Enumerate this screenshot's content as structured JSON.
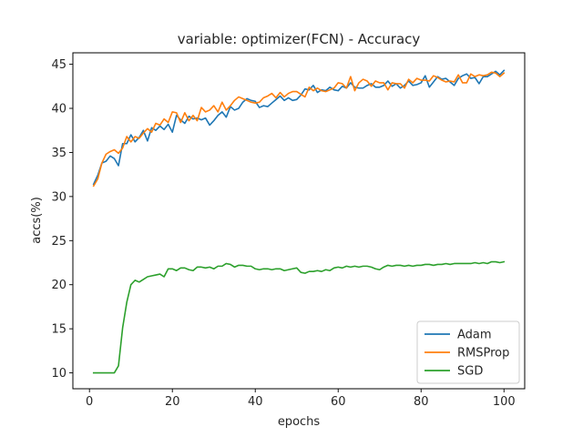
{
  "chart_data": {
    "type": "line",
    "title": "variable: optimizer(FCN) - Accuracy",
    "xlabel": "epochs",
    "ylabel": "accs(%)",
    "xlim": [
      -4,
      105
    ],
    "ylim": [
      8.2,
      46.3
    ],
    "xticks": [
      0,
      20,
      40,
      60,
      80,
      100
    ],
    "yticks": [
      10,
      15,
      20,
      25,
      30,
      35,
      40,
      45
    ],
    "grid": false,
    "legend_position": "bottom-right",
    "series": [
      {
        "name": "Adam",
        "color": "#1f77b4",
        "values": [
          31.4,
          32.4,
          33.8,
          34.0,
          34.6,
          34.3,
          33.5,
          36.0,
          36.0,
          37.0,
          36.2,
          36.7,
          37.5,
          36.3,
          37.8,
          37.5,
          38.0,
          37.6,
          38.2,
          37.3,
          39.2,
          38.7,
          38.3,
          39.1,
          38.8,
          38.9,
          38.7,
          38.9,
          38.1,
          38.6,
          39.2,
          39.6,
          39.0,
          40.2,
          39.8,
          40.0,
          40.7,
          41.1,
          40.9,
          40.8,
          40.1,
          40.3,
          40.2,
          40.6,
          41.0,
          41.4,
          40.9,
          41.2,
          40.9,
          41.0,
          41.5,
          42.2,
          42.1,
          42.6,
          41.8,
          42.1,
          42.0,
          42.4,
          42.1,
          42.0,
          42.5,
          42.3,
          42.9,
          42.4,
          42.3,
          42.3,
          42.6,
          42.8,
          42.4,
          42.4,
          42.6,
          43.1,
          42.5,
          42.8,
          42.3,
          42.6,
          43.1,
          42.6,
          42.7,
          42.9,
          43.7,
          42.4,
          43.0,
          43.6,
          43.3,
          43.4,
          43.0,
          42.6,
          43.4,
          43.7,
          43.9,
          43.4,
          43.5,
          42.8,
          43.6,
          43.6,
          43.9,
          44.2,
          43.8,
          44.3
        ]
      },
      {
        "name": "RMSProp",
        "color": "#ff7f0e",
        "values": [
          31.2,
          32.0,
          33.8,
          34.8,
          35.1,
          35.3,
          34.9,
          35.5,
          36.8,
          36.2,
          36.8,
          36.6,
          37.2,
          37.7,
          37.3,
          38.3,
          38.1,
          38.8,
          38.4,
          39.6,
          39.5,
          38.4,
          39.5,
          38.6,
          39.2,
          38.6,
          40.1,
          39.6,
          39.8,
          40.3,
          39.6,
          40.7,
          39.8,
          40.3,
          40.9,
          41.3,
          41.1,
          40.9,
          40.7,
          40.6,
          40.7,
          41.2,
          41.4,
          41.7,
          41.2,
          41.8,
          41.3,
          41.7,
          41.9,
          41.9,
          41.6,
          41.3,
          42.4,
          42.0,
          42.3,
          42.0,
          41.9,
          42.1,
          42.3,
          42.9,
          42.8,
          42.3,
          43.6,
          42.0,
          42.9,
          43.3,
          43.1,
          42.5,
          43.1,
          42.9,
          42.9,
          42.1,
          42.9,
          42.8,
          42.8,
          42.3,
          43.3,
          42.9,
          43.4,
          43.2,
          43.2,
          43.1,
          43.7,
          43.5,
          43.2,
          43.0,
          43.1,
          43.0,
          43.8,
          42.9,
          42.9,
          43.9,
          43.6,
          43.8,
          43.7,
          43.8,
          44.1,
          44.0,
          43.6,
          44.0
        ]
      },
      {
        "name": "SGD",
        "color": "#2ca02c",
        "values": [
          10.0,
          10.0,
          10.0,
          10.0,
          10.0,
          10.0,
          10.8,
          15.1,
          18.0,
          20.0,
          20.5,
          20.3,
          20.6,
          20.9,
          21.0,
          21.1,
          21.2,
          20.9,
          21.8,
          21.8,
          21.6,
          21.9,
          21.9,
          21.7,
          21.6,
          22.0,
          22.0,
          21.9,
          22.0,
          21.8,
          22.1,
          22.1,
          22.4,
          22.3,
          22.0,
          22.2,
          22.2,
          22.1,
          22.1,
          21.8,
          21.7,
          21.8,
          21.8,
          21.7,
          21.8,
          21.8,
          21.6,
          21.7,
          21.8,
          21.9,
          21.4,
          21.3,
          21.5,
          21.5,
          21.6,
          21.5,
          21.7,
          21.6,
          21.9,
          22.0,
          21.9,
          22.1,
          22.0,
          22.1,
          22.0,
          22.1,
          22.1,
          22.0,
          21.8,
          21.7,
          22.0,
          22.2,
          22.1,
          22.2,
          22.2,
          22.1,
          22.2,
          22.1,
          22.2,
          22.2,
          22.3,
          22.3,
          22.2,
          22.3,
          22.3,
          22.4,
          22.3,
          22.4,
          22.4,
          22.4,
          22.4,
          22.4,
          22.5,
          22.4,
          22.5,
          22.4,
          22.6,
          22.6,
          22.5,
          22.6
        ]
      }
    ]
  }
}
